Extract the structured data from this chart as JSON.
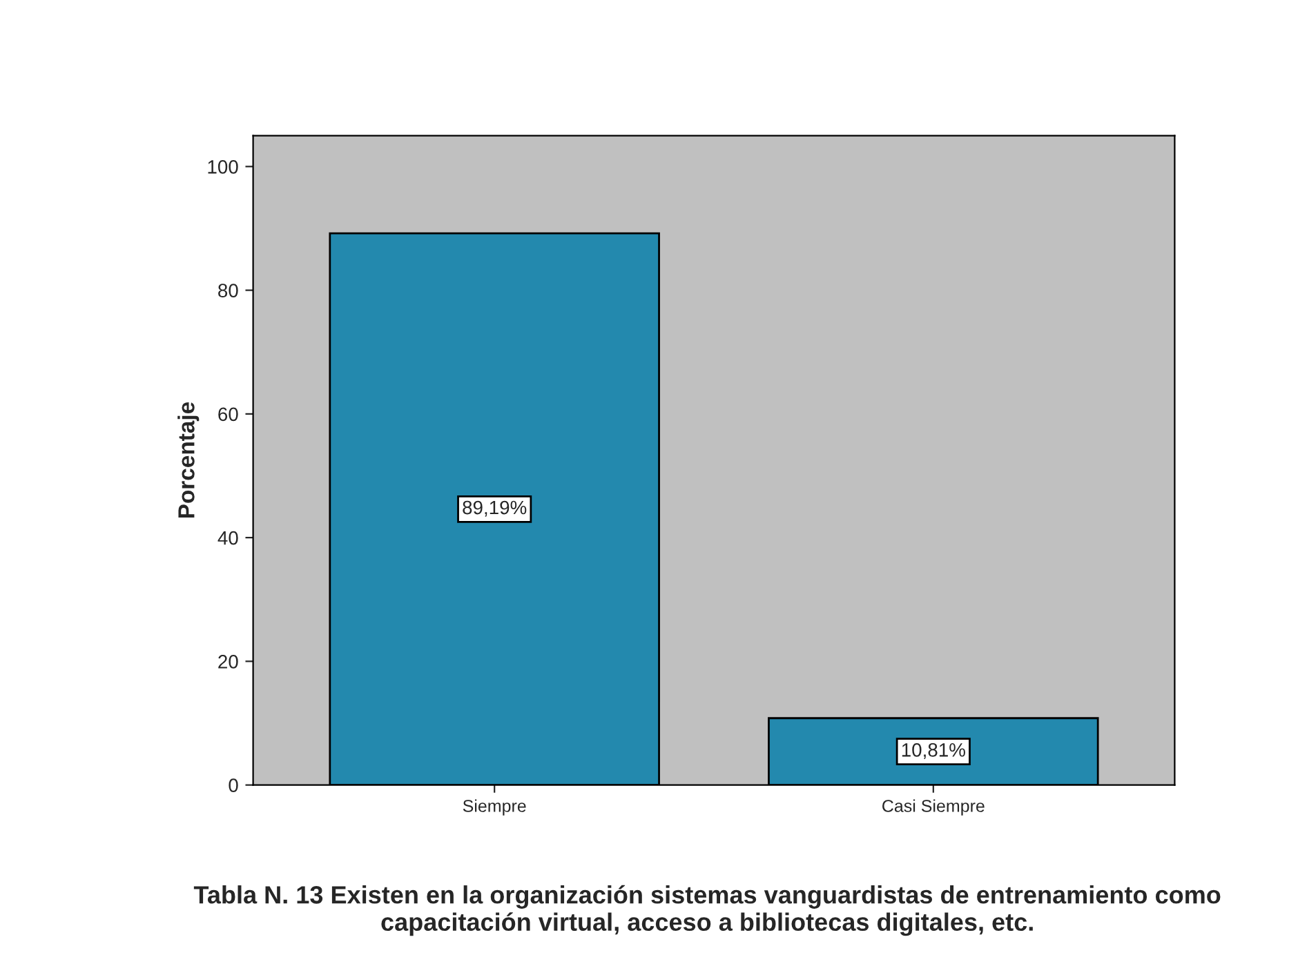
{
  "chart_data": {
    "type": "bar",
    "title": "Tabla N. 13 Existen en la organización sistemas vanguardistas de entrenamiento como capacitación virtual, acceso a bibliotecas digitales, etc.",
    "ylabel": "Porcentaje",
    "categories": [
      "Siempre",
      "Casi Siempre"
    ],
    "values": [
      89.19,
      10.81
    ],
    "value_labels": [
      "89,19%",
      "10,81%"
    ],
    "color": "#2389ae",
    "ylim": [
      0,
      105
    ],
    "yticks": [
      0,
      20,
      40,
      60,
      80,
      100
    ],
    "grid": false,
    "legend": false
  }
}
